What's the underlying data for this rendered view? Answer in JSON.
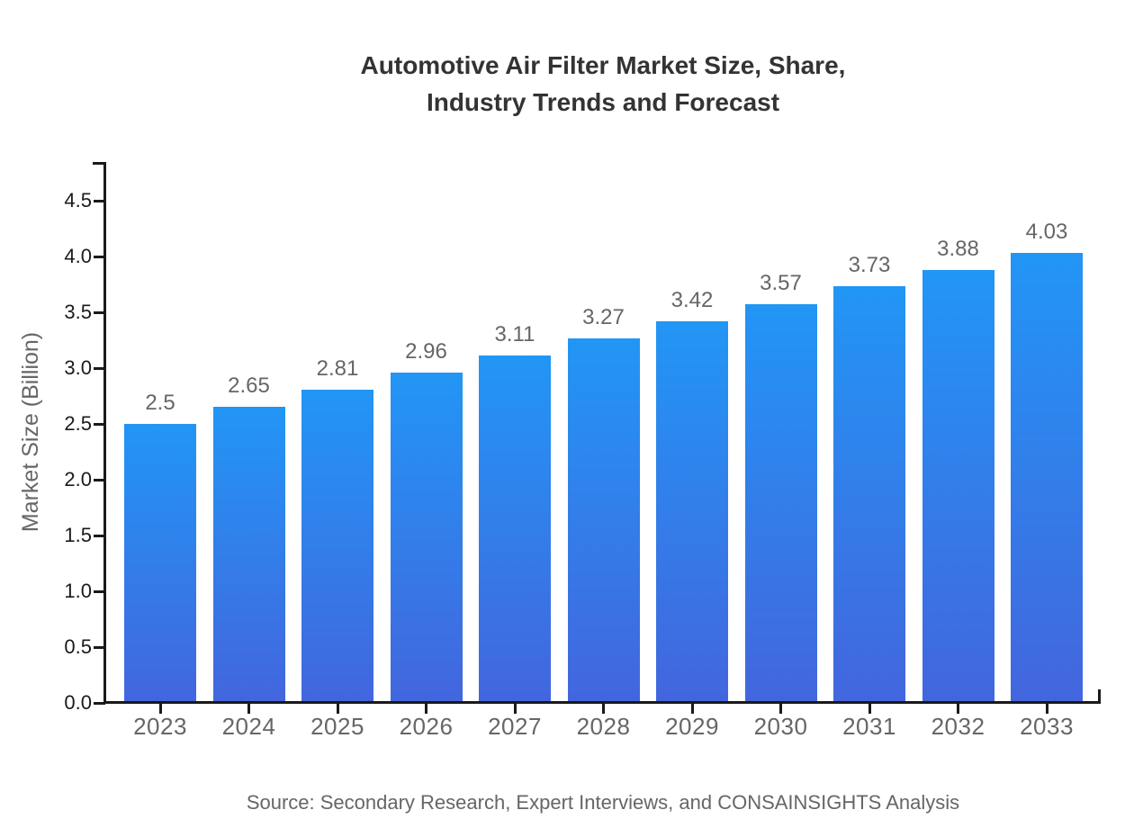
{
  "title": {
    "line1": "Automotive Air Filter Market Size, Share,",
    "line2": "Industry Trends and Forecast"
  },
  "source_note": "Source: Secondary Research, Expert Interviews, and CONSAINSIGHTS Analysis",
  "chart_data": {
    "type": "bar",
    "title": "Automotive Air Filter Market Size, Share, Industry Trends and Forecast",
    "categories": [
      "2023",
      "2024",
      "2025",
      "2026",
      "2027",
      "2028",
      "2029",
      "2030",
      "2031",
      "2032",
      "2033"
    ],
    "values": [
      2.5,
      2.65,
      2.81,
      2.96,
      3.11,
      3.27,
      3.42,
      3.57,
      3.73,
      3.88,
      4.03
    ],
    "xlabel": "",
    "ylabel": "Market Size (Billion)",
    "ylim": [
      0,
      4.85
    ],
    "y_ticks": [
      0,
      0.5,
      1,
      1.5,
      2,
      2.5,
      3,
      3.5,
      4,
      4.5
    ],
    "grid": false,
    "legend": false,
    "colors": {
      "bar_gradient_top": "#2296f5",
      "bar_gradient_bottom": "#4365de",
      "axis": "#1a1a1a",
      "y_tick_label": "#1a1a1a",
      "x_tick_label": "#666666",
      "value_label": "#666666",
      "title": "#333333",
      "source": "#666666"
    }
  }
}
